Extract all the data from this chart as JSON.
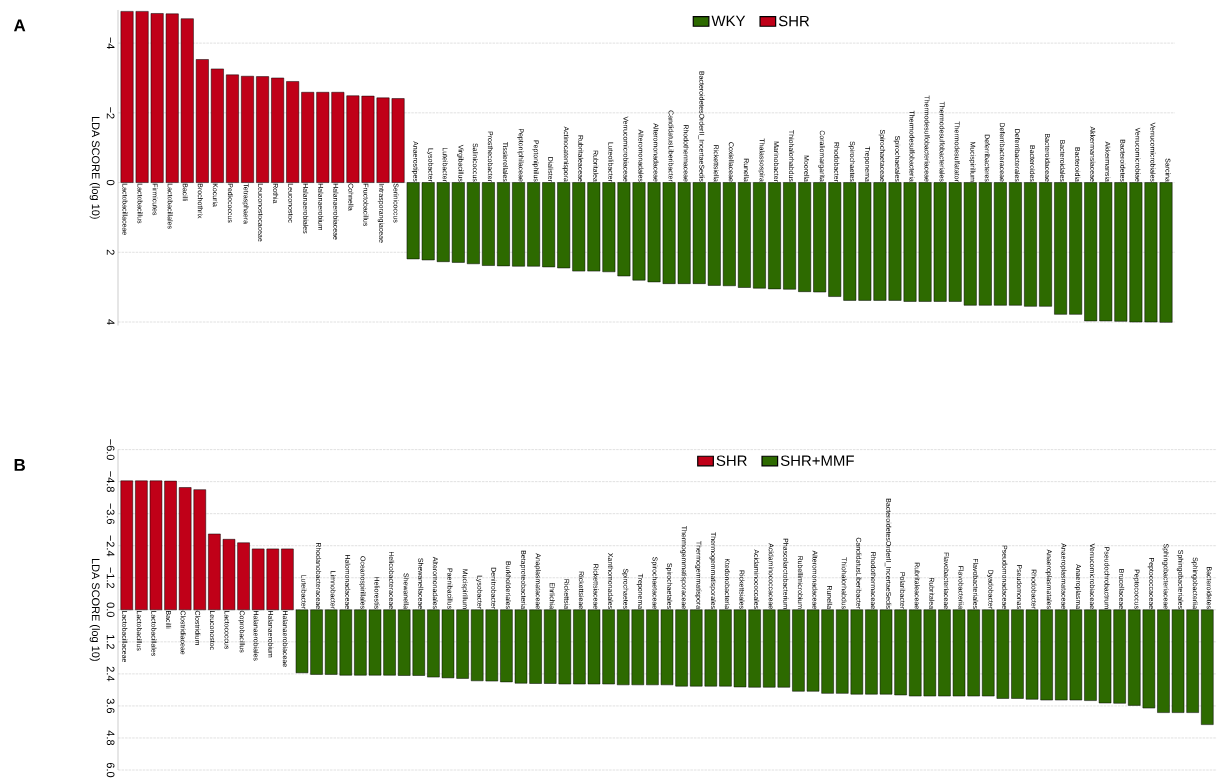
{
  "chart_data": [
    {
      "type": "bar",
      "annotations": [
        "A"
      ],
      "ylabel": "LDA SCORE (log 10)",
      "categories": [
        "Lactobacillaceae",
        "Lactobacillus",
        "Firmicutes",
        "Lactobacillales",
        "Bacilli",
        "Brochothrix",
        "Kocuria",
        "Pediococcus",
        "Tetrasphaera",
        "Leuconostocaceae",
        "Rothia",
        "Leuconostoc",
        "Halanaerobiales",
        "Halanaerobium",
        "Halanaerobiaceae",
        "Cohnella",
        "Fructobacillus",
        "Intrasporangiaceae",
        "Serinicoccus",
        "Anaerostipes",
        "Lysobacter",
        "Luteibacter",
        "Virgibacillus",
        "Salinicoccus",
        "Prosthecobacter",
        "Tissierellales",
        "Peptoniphilaceae",
        "Peptoniphilus",
        "Dialister",
        "Actinocatenispora",
        "Rubritaleaceae",
        "Rubritalea",
        "Luteolibacter",
        "Verrucomicrobiaceae",
        "Alteromonadales",
        "Alteromonadaceae",
        "CandidatusLiberibacter",
        "Rhodothermaceae",
        "BacteroidetesOrderII_IncertaeSedis",
        "Rickettsiella",
        "Coxiellaceae",
        "Runella",
        "Thalassospira",
        "Marinobacter",
        "Thiohalorhabdus",
        "Moorella",
        "Coraliomargarita",
        "Rhodobacter",
        "Spirochaetes",
        "Treponema",
        "Spirochaetaceae",
        "Spirochaetales",
        "Thermodesulfobacteria",
        "Thermodesulfobacteriaceae",
        "Thermodesulfobacteriales",
        "Thermodesulfatator",
        "Mucispirillum",
        "Deferribacteres",
        "Deferribacteraceae",
        "Deferribacterales",
        "Bacteroides",
        "Bacteroidaceae",
        "Bacteroidales",
        "Bacteroidia",
        "Akkermansiaceae",
        "Akkermansia",
        "Bacteroidetes",
        "Verrucomicrobiae",
        "Verrucomicrobiales",
        "Sarcina"
      ],
      "series": [
        {
          "name": "WKY",
          "color": "#2d6a00",
          "values": [
            null,
            null,
            null,
            null,
            null,
            null,
            null,
            null,
            null,
            null,
            null,
            null,
            null,
            null,
            null,
            null,
            null,
            null,
            null,
            2.19,
            2.22,
            2.27,
            2.29,
            2.33,
            2.38,
            2.39,
            2.4,
            2.4,
            2.42,
            2.45,
            2.54,
            2.54,
            2.56,
            2.68,
            2.8,
            2.85,
            2.9,
            2.9,
            2.9,
            2.95,
            2.96,
            3.01,
            3.03,
            3.05,
            3.06,
            3.13,
            3.14,
            3.27,
            3.38,
            3.38,
            3.38,
            3.38,
            3.41,
            3.41,
            3.41,
            3.41,
            3.52,
            3.52,
            3.52,
            3.52,
            3.55,
            3.55,
            3.78,
            3.78,
            3.97,
            3.97,
            3.98,
            4.0,
            4.0,
            4.01
          ]
        },
        {
          "name": "SHR",
          "color": "#c00018",
          "values": [
            -4.91,
            -4.91,
            -4.85,
            -4.84,
            -4.7,
            -3.53,
            -3.26,
            -3.09,
            -3.05,
            -3.04,
            -3.0,
            -2.9,
            -2.59,
            -2.59,
            -2.59,
            -2.49,
            -2.48,
            -2.43,
            -2.41,
            null,
            null,
            null,
            null,
            null,
            null,
            null,
            null,
            null,
            null,
            null,
            null,
            null,
            null,
            null,
            null,
            null,
            null,
            null,
            null,
            null,
            null,
            null,
            null,
            null,
            null,
            null,
            null,
            null,
            null,
            null,
            null,
            null,
            null,
            null,
            null,
            null,
            null,
            null,
            null,
            null,
            null,
            null,
            null,
            null,
            null,
            null,
            null,
            null,
            null,
            null
          ]
        }
      ],
      "ylim": [
        4.1,
        -4.95
      ],
      "yticks": [
        {
          "value": -4,
          "label": "−4"
        },
        {
          "value": -2,
          "label": "−2"
        },
        0,
        2,
        4
      ],
      "grid": "y",
      "legend": "top"
    },
    {
      "type": "bar",
      "annotations": [
        "B"
      ],
      "ylabel": "LDA SCORE (log 10)",
      "categories": [
        "Lactobacillaceae",
        "Lactobacillus",
        "Lactobacillales",
        "Bacilli",
        "Clostridiaceae",
        "Clostridium",
        "Leuconostoc",
        "Lactococcus",
        "Coprobacillus",
        "Halanaerobiales",
        "Halanaerobium",
        "Halanaerobiaceae",
        "Luteibacter",
        "Rhodanobacteraceae",
        "Limnobacter",
        "Halomonadaceae",
        "Oceanospirillales",
        "Heliorestis",
        "Helicobacteraceae",
        "Shewanella",
        "Shewanellaceae",
        "Alteromonadales",
        "Paenibacillus",
        "Mucispirillum",
        "Lysobacter",
        "Denitrobacter",
        "Burkholderiales",
        "Betaproteobacteria",
        "Anaplasmataceae",
        "Ehrlichia",
        "Rickettsia",
        "Rickettsieae",
        "Rickettsiaceae",
        "Xanthomonadales",
        "Spirochaetes",
        "Treponema",
        "Spirochaetaceae",
        "Spirochaetales",
        "Thermogemmatisporaceae",
        "Thermogemmatispora",
        "Thermogemmatisporales",
        "Ktedonobacteria",
        "Rickettsiales",
        "Acidaminococcales",
        "Acidaminococcaceae",
        "Phascolarctobacterium",
        "Rubellimicrobium",
        "Alteromonadaceae",
        "Runella",
        "Thiohalorhabdus",
        "CandidatusLiberibacter",
        "Rhodothermaceae",
        "BacteroidetesOrderII_IncertaeSedis",
        "Polaribacter",
        "Rubritaleaceae",
        "Rubritalea",
        "Flavobacteriaceae",
        "Flavobacteriia",
        "Flavobacteriales",
        "Dyadobacter",
        "Pseudomonadaceae",
        "Pseudomonas",
        "Rhodobacter",
        "Anaeroplasmatales",
        "Anaeroplasmataceae",
        "Anaeroplasma",
        "Verrucomicrobiaceae",
        "Pseudochrobactrum",
        "Brucellaceae",
        "Peptococcus",
        "Peptococcaceae",
        "Sphingobacteriaceae",
        "Sphingobacteriales",
        "Sphingobacteriia",
        "Bacteroidetes"
      ],
      "series": [
        {
          "name": "SHR",
          "color": "#c00018",
          "values": [
            -4.83,
            -4.83,
            -4.83,
            -4.82,
            -4.58,
            -4.5,
            -2.84,
            -2.64,
            -2.51,
            -2.28,
            -2.28,
            -2.28,
            null,
            null,
            null,
            null,
            null,
            null,
            null,
            null,
            null,
            null,
            null,
            null,
            null,
            null,
            null,
            null,
            null,
            null,
            null,
            null,
            null,
            null,
            null,
            null,
            null,
            null,
            null,
            null,
            null,
            null,
            null,
            null,
            null,
            null,
            null,
            null,
            null,
            null,
            null,
            null,
            null,
            null,
            null,
            null,
            null,
            null,
            null,
            null,
            null,
            null,
            null,
            null,
            null,
            null,
            null,
            null,
            null,
            null,
            null,
            null,
            null,
            null,
            null
          ]
        },
        {
          "name": "SHR+MMF",
          "color": "#2d6a00",
          "values": [
            null,
            null,
            null,
            null,
            null,
            null,
            null,
            null,
            null,
            null,
            null,
            null,
            2.36,
            2.42,
            2.42,
            2.45,
            2.45,
            2.45,
            2.45,
            2.46,
            2.46,
            2.52,
            2.55,
            2.57,
            2.66,
            2.67,
            2.7,
            2.75,
            2.76,
            2.76,
            2.78,
            2.78,
            2.78,
            2.78,
            2.81,
            2.81,
            2.81,
            2.81,
            2.86,
            2.86,
            2.86,
            2.86,
            2.89,
            2.9,
            2.9,
            2.9,
            3.05,
            3.05,
            3.13,
            3.13,
            3.16,
            3.16,
            3.16,
            3.19,
            3.23,
            3.23,
            3.23,
            3.23,
            3.23,
            3.23,
            3.32,
            3.32,
            3.35,
            3.38,
            3.38,
            3.38,
            3.4,
            3.49,
            3.5,
            3.58,
            3.68,
            3.85,
            3.85,
            3.85,
            4.3
          ]
        }
      ],
      "ylim": [
        6,
        -6
      ],
      "yticks": [
        {
          "value": -6,
          "label": "−6.0"
        },
        {
          "value": -4.8,
          "label": "−4.8"
        },
        {
          "value": -3.6,
          "label": "−3.6"
        },
        {
          "value": -2.4,
          "label": "−2.4"
        },
        {
          "value": -1.2,
          "label": "−1.2"
        },
        {
          "value": 0,
          "label": "0.0"
        },
        1.2,
        2.4,
        3.6,
        4.8,
        {
          "value": 6,
          "label": "6.0"
        }
      ],
      "grid": "y",
      "legend": "top"
    }
  ]
}
